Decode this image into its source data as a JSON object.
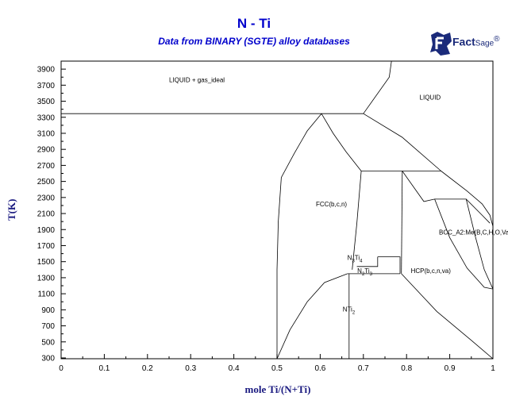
{
  "chart_data": {
    "type": "line",
    "title": "N - Ti",
    "subtitle": "Data from BINARY (SGTE) alloy databases",
    "xlabel": "mole Ti/(N+Ti)",
    "ylabel": "T(K)",
    "xlim": [
      0,
      1
    ],
    "ylim": [
      290,
      4000
    ],
    "x_ticks": [
      "0",
      "0.1",
      "0.2",
      "0.3",
      "0.4",
      "0.5",
      "0.6",
      "0.7",
      "0.8",
      "0.9",
      "1"
    ],
    "y_ticks": [
      "300",
      "500",
      "700",
      "900",
      "1100",
      "1300",
      "1500",
      "1700",
      "1900",
      "2100",
      "2300",
      "2500",
      "2700",
      "2900",
      "3100",
      "3300",
      "3500",
      "3700",
      "3900"
    ],
    "grid": false,
    "line_color": "#000000",
    "region_labels": [
      {
        "text": "LIQUID + gas_ideal",
        "x": 0.25,
        "y": 3740
      },
      {
        "text": "LIQUID",
        "x": 0.83,
        "y": 3520
      },
      {
        "text": "FCC(b,c,n)",
        "x": 0.59,
        "y": 2190
      },
      {
        "text": "BCC_A2:Me(B,C,H,O,Va)",
        "x": 0.875,
        "y": 1840
      },
      {
        "text": "HCP(b,c,n,va)",
        "x": 0.81,
        "y": 1360
      },
      {
        "text": "NTi2",
        "x": 0.652,
        "y": 880,
        "main": "NTi",
        "sub": "2"
      },
      {
        "text": "N3Ti4",
        "x": 0.663,
        "y": 1520,
        "main": "N",
        "sub": "3",
        "main2": "Ti",
        "sub2": "4"
      },
      {
        "text": "N2Ti3",
        "x": 0.686,
        "y": 1360,
        "main": "N",
        "sub": "2",
        "main2": "Ti",
        "sub2": "3"
      }
    ],
    "series": [
      {
        "values": [
          [
            0,
            3345
          ],
          [
            0.603,
            3345
          ],
          [
            0.7,
            3345
          ]
        ]
      },
      {
        "values": [
          [
            0.7,
            3345
          ],
          [
            0.76,
            3800
          ],
          [
            0.765,
            4000
          ]
        ]
      },
      {
        "values": [
          [
            0.7,
            3345
          ],
          [
            0.79,
            3050
          ],
          [
            0.88,
            2630
          ]
        ]
      },
      {
        "values": [
          [
            0.88,
            2630
          ],
          [
            0.94,
            2380
          ],
          [
            0.975,
            2220
          ],
          [
            0.993,
            2080
          ],
          [
            1,
            1940
          ]
        ]
      },
      {
        "values": [
          [
            0.5,
            290
          ],
          [
            0.5,
            1400
          ],
          [
            0.503,
            2000
          ],
          [
            0.51,
            2550
          ],
          [
            0.54,
            2850
          ],
          [
            0.57,
            3130
          ],
          [
            0.603,
            3345
          ]
        ]
      },
      {
        "values": [
          [
            0.603,
            3345
          ],
          [
            0.63,
            3100
          ],
          [
            0.66,
            2870
          ],
          [
            0.695,
            2630
          ]
        ]
      },
      {
        "values": [
          [
            0.695,
            2630
          ],
          [
            0.88,
            2630
          ]
        ]
      },
      {
        "values": [
          [
            0.695,
            2630
          ],
          [
            0.685,
            1980
          ],
          [
            0.674,
            1400
          ]
        ]
      },
      {
        "values": [
          [
            0.733,
            1560
          ],
          [
            0.785,
            1560
          ],
          [
            0.785,
            1350
          ]
        ]
      },
      {
        "values": [
          [
            0.663,
            1350
          ],
          [
            0.785,
            1350
          ]
        ]
      },
      {
        "values": [
          [
            0.733,
            1560
          ],
          [
            0.733,
            1440
          ],
          [
            0.685,
            1440
          ]
        ]
      },
      {
        "values": [
          [
            0.667,
            290
          ],
          [
            0.667,
            1350
          ]
        ]
      },
      {
        "values": [
          [
            0.5,
            290
          ],
          [
            0.53,
            650
          ],
          [
            0.57,
            1000
          ],
          [
            0.61,
            1240
          ],
          [
            0.663,
            1350
          ]
        ]
      },
      {
        "values": [
          [
            0.79,
            2630
          ],
          [
            0.788,
            1350
          ]
        ]
      },
      {
        "values": [
          [
            0.788,
            1350
          ],
          [
            0.87,
            880
          ],
          [
            0.95,
            520
          ],
          [
            1,
            290
          ]
        ]
      },
      {
        "values": [
          [
            0.79,
            2630
          ],
          [
            0.84,
            2250
          ],
          [
            0.865,
            2280
          ],
          [
            0.938,
            2280
          ],
          [
            0.975,
            2080
          ],
          [
            0.993,
            1980
          ]
        ]
      },
      {
        "values": [
          [
            0.865,
            2280
          ],
          [
            0.9,
            1800
          ],
          [
            0.94,
            1420
          ],
          [
            0.98,
            1180
          ],
          [
            1,
            1160
          ]
        ]
      },
      {
        "values": [
          [
            0.938,
            2280
          ],
          [
            0.96,
            1800
          ],
          [
            0.98,
            1400
          ],
          [
            1,
            1160
          ]
        ]
      }
    ]
  },
  "logo": {
    "brand": "Fact",
    "suffix": "Sage",
    "tm": "®"
  }
}
